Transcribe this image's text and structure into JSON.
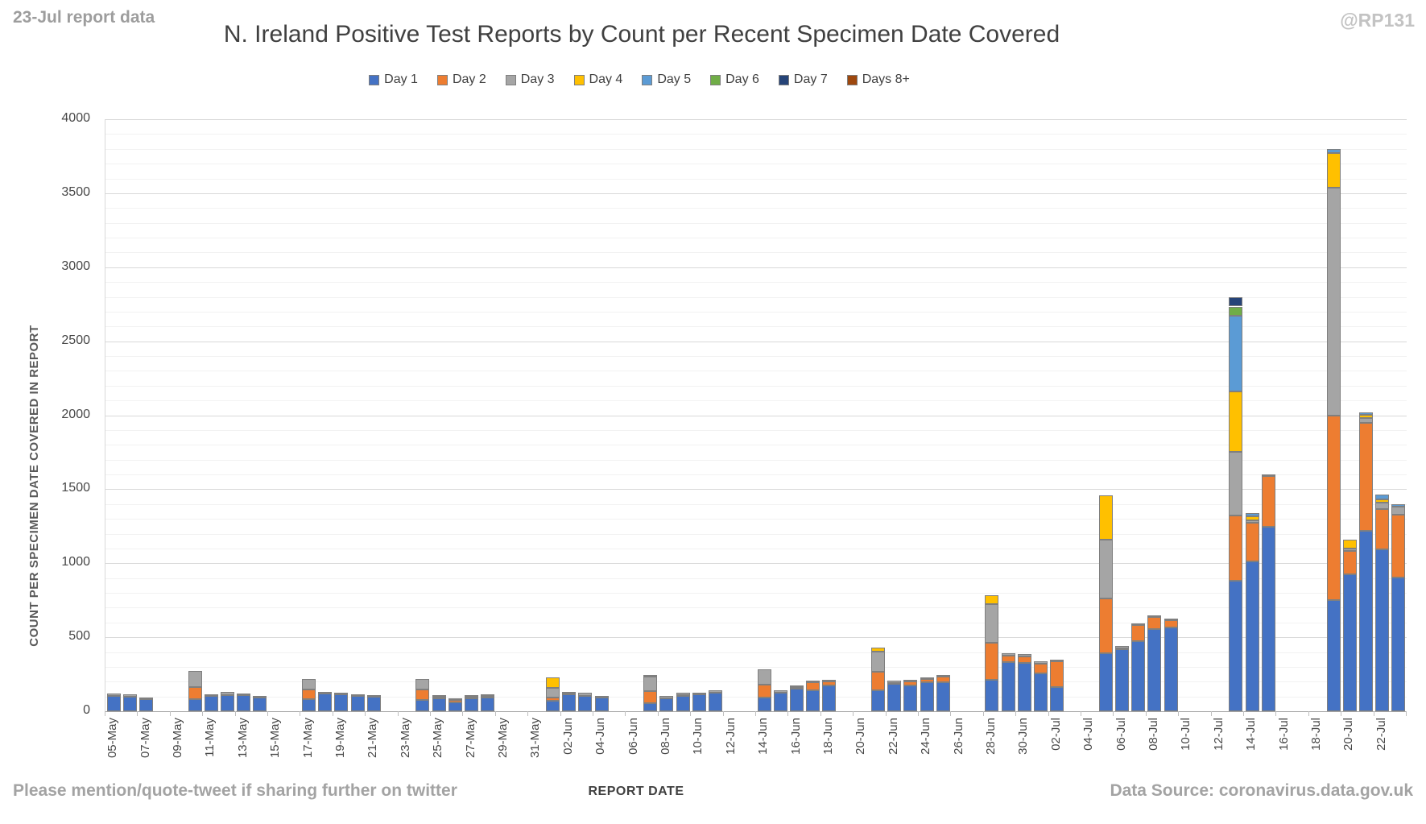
{
  "header": {
    "report_note": "23-Jul report data",
    "handle": "@RP131",
    "title": "N. Ireland Positive Test Reports by Count per Recent Specimen Date Covered"
  },
  "footer": {
    "share_note": "Please mention/quote-tweet if sharing further on twitter",
    "data_source": "Data Source: coronavirus.data.gov.uk"
  },
  "chart_data": {
    "type": "bar",
    "stacked": true,
    "title": "N. Ireland Positive Test Reports by Count per Recent Specimen Date Covered",
    "xlabel": "REPORT DATE",
    "ylabel": "COUNT PER SPECIMEN DATE COVERED IN REPORT",
    "ylim": [
      0,
      4000
    ],
    "ytick_interval": 500,
    "yminor_interval": 100,
    "grid": true,
    "legend_position": "top",
    "x_slot_count": 80,
    "xtick_labels": [
      "05-May",
      "07-May",
      "09-May",
      "11-May",
      "13-May",
      "15-May",
      "17-May",
      "19-May",
      "21-May",
      "23-May",
      "25-May",
      "27-May",
      "29-May",
      "31-May",
      "02-Jun",
      "04-Jun",
      "06-Jun",
      "08-Jun",
      "10-Jun",
      "12-Jun",
      "14-Jun",
      "16-Jun",
      "18-Jun",
      "20-Jun",
      "22-Jun",
      "24-Jun",
      "26-Jun",
      "28-Jun",
      "30-Jun",
      "02-Jul",
      "04-Jul",
      "06-Jul",
      "08-Jul",
      "10-Jul",
      "12-Jul",
      "14-Jul",
      "16-Jul",
      "18-Jul",
      "20-Jul",
      "22-Jul"
    ],
    "series": [
      {
        "name": "Day 1",
        "color": "#4472C4"
      },
      {
        "name": "Day 2",
        "color": "#ED7D31"
      },
      {
        "name": "Day 3",
        "color": "#A5A5A5"
      },
      {
        "name": "Day 4",
        "color": "#FFC000"
      },
      {
        "name": "Day 5",
        "color": "#5B9BD5"
      },
      {
        "name": "Day 6",
        "color": "#70AD47"
      },
      {
        "name": "Day 7",
        "color": "#264478"
      },
      {
        "name": "Days 8+",
        "color": "#9E480E"
      }
    ],
    "bars": [
      {
        "date": "05-May",
        "slot": 0,
        "values": [
          105,
          0,
          15
        ]
      },
      {
        "date": "06-May",
        "slot": 1,
        "values": [
          100,
          0,
          15
        ]
      },
      {
        "date": "07-May",
        "slot": 2,
        "values": [
          80,
          0,
          5
        ]
      },
      {
        "date": "10-May",
        "slot": 5,
        "values": [
          80,
          85,
          110
        ]
      },
      {
        "date": "11-May",
        "slot": 6,
        "values": [
          105,
          0,
          12
        ]
      },
      {
        "date": "12-May",
        "slot": 7,
        "values": [
          108,
          0,
          22
        ]
      },
      {
        "date": "13-May",
        "slot": 8,
        "values": [
          110,
          0,
          8
        ]
      },
      {
        "date": "14-May",
        "slot": 9,
        "values": [
          95,
          0,
          10
        ]
      },
      {
        "date": "17-May",
        "slot": 12,
        "values": [
          80,
          67,
          73
        ]
      },
      {
        "date": "18-May",
        "slot": 13,
        "values": [
          118,
          0,
          12
        ]
      },
      {
        "date": "19-May",
        "slot": 14,
        "values": [
          112,
          0,
          13
        ]
      },
      {
        "date": "20-May",
        "slot": 15,
        "values": [
          103,
          0,
          9
        ]
      },
      {
        "date": "21-May",
        "slot": 16,
        "values": [
          98,
          0,
          10
        ]
      },
      {
        "date": "24-May",
        "slot": 19,
        "values": [
          75,
          70,
          75
        ]
      },
      {
        "date": "25-May",
        "slot": 20,
        "values": [
          88,
          10,
          12
        ]
      },
      {
        "date": "26-May",
        "slot": 21,
        "values": [
          62,
          15,
          10
        ]
      },
      {
        "date": "27-May",
        "slot": 22,
        "values": [
          88,
          12,
          8
        ]
      },
      {
        "date": "28-May",
        "slot": 23,
        "values": [
          92,
          10,
          6
        ]
      },
      {
        "date": "01-Jun",
        "slot": 27,
        "values": [
          70,
          25,
          63,
          72
        ]
      },
      {
        "date": "02-Jun",
        "slot": 28,
        "values": [
          112,
          6,
          12
        ]
      },
      {
        "date": "03-Jun",
        "slot": 29,
        "values": [
          105,
          0,
          18
        ]
      },
      {
        "date": "04-Jun",
        "slot": 30,
        "values": [
          92,
          0,
          12
        ]
      },
      {
        "date": "07-Jun",
        "slot": 33,
        "values": [
          55,
          80,
          100,
          10
        ]
      },
      {
        "date": "08-Jun",
        "slot": 34,
        "values": [
          85,
          5,
          12
        ]
      },
      {
        "date": "09-Jun",
        "slot": 35,
        "values": [
          105,
          6,
          14
        ]
      },
      {
        "date": "10-Jun",
        "slot": 36,
        "values": [
          112,
          0,
          16
        ]
      },
      {
        "date": "11-Jun",
        "slot": 37,
        "values": [
          128,
          0,
          12
        ]
      },
      {
        "date": "14-Jun",
        "slot": 40,
        "values": [
          95,
          85,
          105
        ]
      },
      {
        "date": "15-Jun",
        "slot": 41,
        "values": [
          123,
          5,
          12
        ]
      },
      {
        "date": "16-Jun",
        "slot": 42,
        "values": [
          150,
          15,
          10
        ]
      },
      {
        "date": "17-Jun",
        "slot": 43,
        "values": [
          143,
          52,
          10
        ]
      },
      {
        "date": "18-Jun",
        "slot": 44,
        "values": [
          172,
          30,
          12
        ]
      },
      {
        "date": "21-Jun",
        "slot": 47,
        "values": [
          140,
          125,
          140,
          25
        ]
      },
      {
        "date": "22-Jun",
        "slot": 48,
        "values": [
          188,
          5,
          14
        ]
      },
      {
        "date": "23-Jun",
        "slot": 49,
        "values": [
          172,
          32,
          11
        ]
      },
      {
        "date": "24-Jun",
        "slot": 50,
        "values": [
          194,
          26,
          11
        ]
      },
      {
        "date": "25-Jun",
        "slot": 51,
        "values": [
          195,
          40,
          11
        ]
      },
      {
        "date": "28-Jun",
        "slot": 54,
        "values": [
          210,
          255,
          260,
          60
        ]
      },
      {
        "date": "29-Jun",
        "slot": 55,
        "values": [
          333,
          42,
          15
        ]
      },
      {
        "date": "30-Jun",
        "slot": 56,
        "values": [
          328,
          42,
          15
        ]
      },
      {
        "date": "01-Jul",
        "slot": 57,
        "values": [
          258,
          65,
          12
        ]
      },
      {
        "date": "02-Jul",
        "slot": 58,
        "values": [
          165,
          172,
          12
        ]
      },
      {
        "date": "05-Jul",
        "slot": 61,
        "values": [
          390,
          370,
          400,
          300
        ]
      },
      {
        "date": "06-Jul",
        "slot": 62,
        "values": [
          420,
          6,
          15
        ]
      },
      {
        "date": "07-Jul",
        "slot": 63,
        "values": [
          475,
          105,
          11
        ]
      },
      {
        "date": "08-Jul",
        "slot": 64,
        "values": [
          558,
          80,
          12
        ]
      },
      {
        "date": "09-Jul",
        "slot": 65,
        "values": [
          568,
          45,
          12
        ]
      },
      {
        "date": "13-Jul",
        "slot": 69,
        "values": [
          880,
          445,
          425,
          410,
          510,
          65,
          65
        ]
      },
      {
        "date": "14-Jul",
        "slot": 70,
        "values": [
          1015,
          260,
          15,
          30,
          20
        ]
      },
      {
        "date": "15-Jul",
        "slot": 71,
        "values": [
          1245,
          345,
          12
        ]
      },
      {
        "date": "19-Jul",
        "slot": 75,
        "values": [
          750,
          1250,
          1540,
          230,
          30
        ]
      },
      {
        "date": "20-Jul",
        "slot": 76,
        "values": [
          928,
          157,
          12,
          63
        ]
      },
      {
        "date": "21-Jul",
        "slot": 77,
        "values": [
          1220,
          730,
          30,
          25,
          15
        ]
      },
      {
        "date": "22-Jul",
        "slot": 78,
        "values": [
          1093,
          272,
          45,
          20,
          35
        ]
      },
      {
        "date": "23-Jul",
        "slot": 79,
        "values": [
          905,
          425,
          55,
          0,
          15
        ]
      }
    ]
  }
}
